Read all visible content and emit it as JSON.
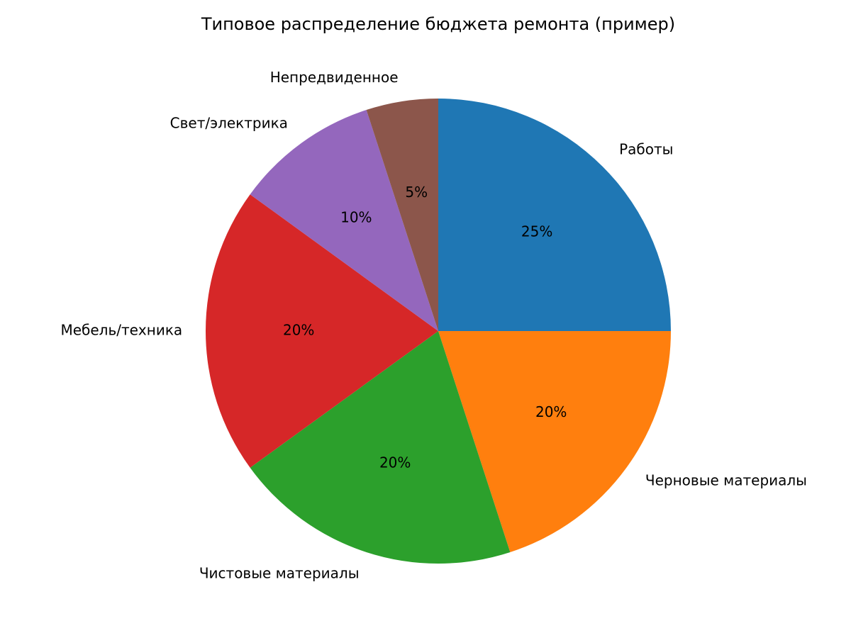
{
  "chart_data": {
    "type": "pie",
    "title": "Типовое распределение бюджета ремонта (пример)",
    "categories": [
      "Работы",
      "Черновые материалы",
      "Чистовые материалы",
      "Мебель/техника",
      "Свет/электрика",
      "Непредвиденное"
    ],
    "values": [
      25,
      20,
      20,
      20,
      10,
      5
    ],
    "value_labels": [
      "25%",
      "20%",
      "20%",
      "20%",
      "10%",
      "5%"
    ],
    "colors": [
      "#1f77b4",
      "#ff7f0e",
      "#2ca02c",
      "#d62728",
      "#9467bd",
      "#8c564b"
    ]
  }
}
